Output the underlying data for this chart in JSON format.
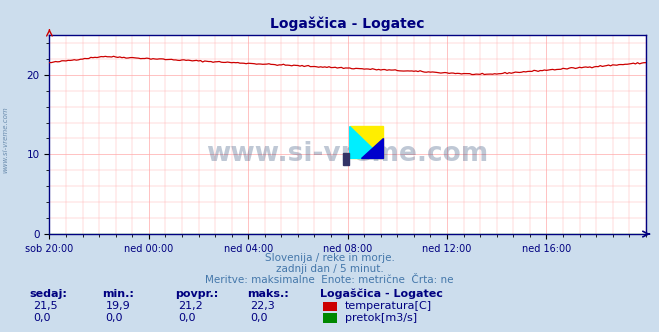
{
  "title": "Logaščica - Logatec",
  "title_color": "#000080",
  "bg_color": "#ccdded",
  "plot_bg_color": "#ffffff",
  "grid_color": "#ffaaaa",
  "axis_color": "#000080",
  "temp_color": "#cc0000",
  "flow_color": "#008800",
  "x_labels": [
    "sob 20:00",
    "ned 00:00",
    "ned 04:00",
    "ned 08:00",
    "ned 12:00",
    "ned 16:00"
  ],
  "x_ticks": [
    0,
    48,
    96,
    144,
    192,
    240
  ],
  "n_points": 289,
  "ylim": [
    0,
    25
  ],
  "y_ticks": [
    0,
    10,
    20
  ],
  "subtitle1": "Slovenija / reke in morje.",
  "subtitle2": "zadnji dan / 5 minut.",
  "subtitle3": "Meritve: maksimalne  Enote: metrične  Črta: ne",
  "legend_title": "Logaščica - Logatec",
  "label_sedaj": "sedaj:",
  "label_min": "min.:",
  "label_povpr": "povpr.:",
  "label_maks": "maks.:",
  "temp_sedaj": "21,5",
  "temp_min": "19,9",
  "temp_povpr": "21,2",
  "temp_maks": "22,3",
  "flow_sedaj": "0,0",
  "flow_min": "0,0",
  "flow_povpr": "0,0",
  "flow_maks": "0,0",
  "label_temp": "temperatura[C]",
  "label_flow": "pretok[m3/s]",
  "watermark": "www.si-vreme.com",
  "watermark_color": "#1a3a6a",
  "watermark_alpha": 0.28,
  "sidebar_text": "www.si-vreme.com",
  "sidebar_color": "#1a4a7a",
  "subtitle_color": "#4477aa",
  "table_header_color": "#000080",
  "table_val_color": "#000080"
}
